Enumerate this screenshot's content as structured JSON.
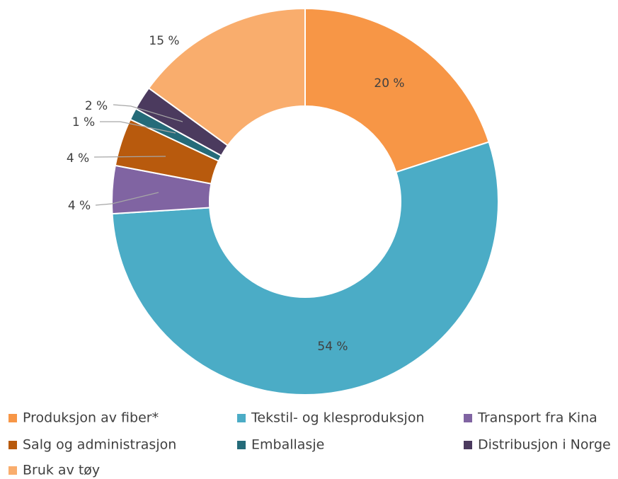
{
  "chart_data": {
    "type": "donut",
    "categories": [
      "Produksjon av fiber*",
      "Tekstil- og klesproduksjon",
      "Transport fra Kina",
      "Salg og administrasjon",
      "Emballasje",
      "Distribusjon i Norge",
      "Bruk av tøy"
    ],
    "values": [
      20,
      54,
      4,
      4,
      1,
      2,
      15
    ],
    "value_labels": [
      "20 %",
      "54 %",
      "4 %",
      "4 %",
      "1 %",
      "2 %",
      "15 %"
    ],
    "colors": [
      "#f79646",
      "#4bacc6",
      "#8064a2",
      "#b85a0d",
      "#256b79",
      "#4b3a5e",
      "#f9ad6d"
    ],
    "legend": "bottom"
  }
}
